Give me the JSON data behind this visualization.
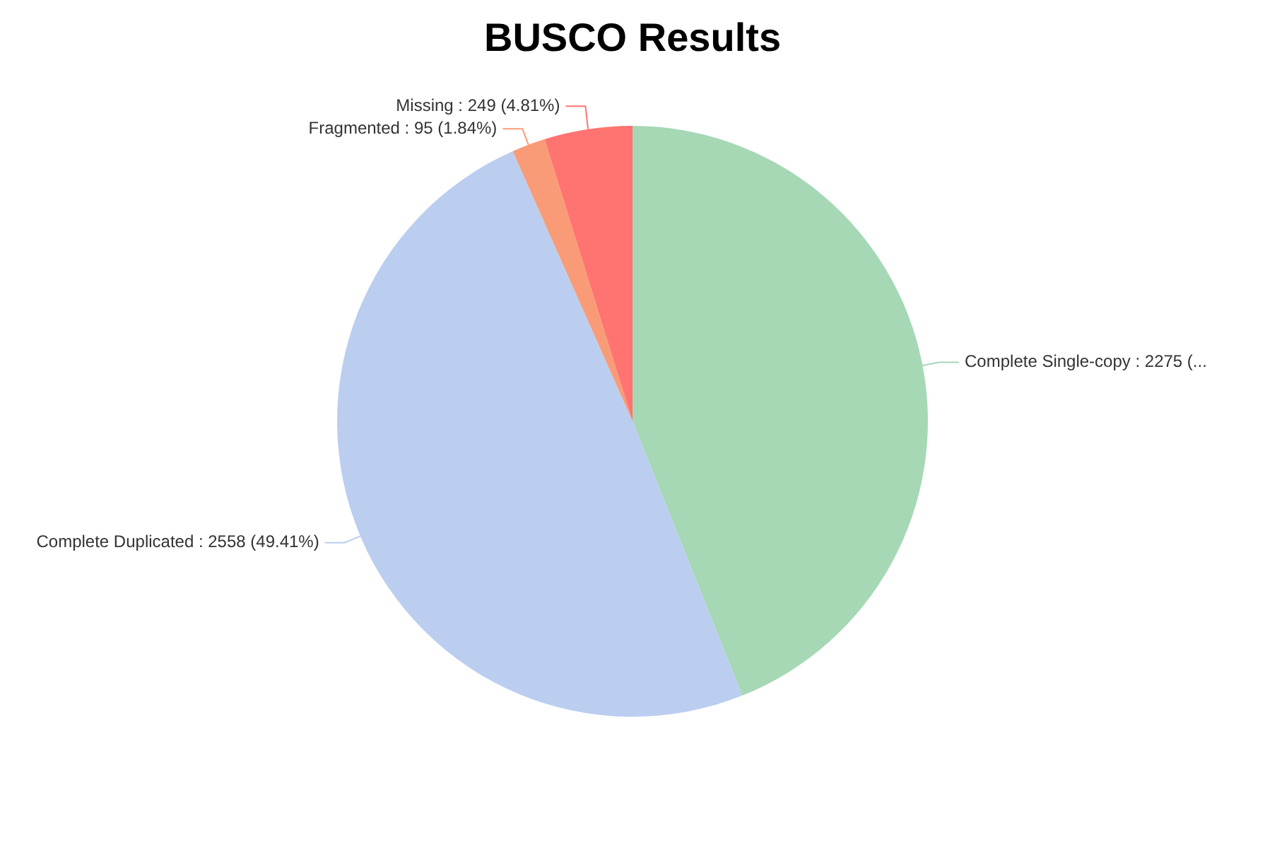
{
  "chart_data": {
    "type": "pie",
    "title": "BUSCO Results",
    "categories": [
      "Complete Single-copy",
      "Complete Duplicated",
      "Fragmented",
      "Missing"
    ],
    "values": [
      2275,
      2558,
      95,
      249
    ],
    "colors": [
      "#a6d8b6",
      "#bbcef0",
      "#f99b76",
      "#ff7470"
    ],
    "value_labels": [
      "2275 (...",
      "2558 (49.41%)",
      "95 (1.84%)",
      "249 (4.81%)"
    ]
  }
}
